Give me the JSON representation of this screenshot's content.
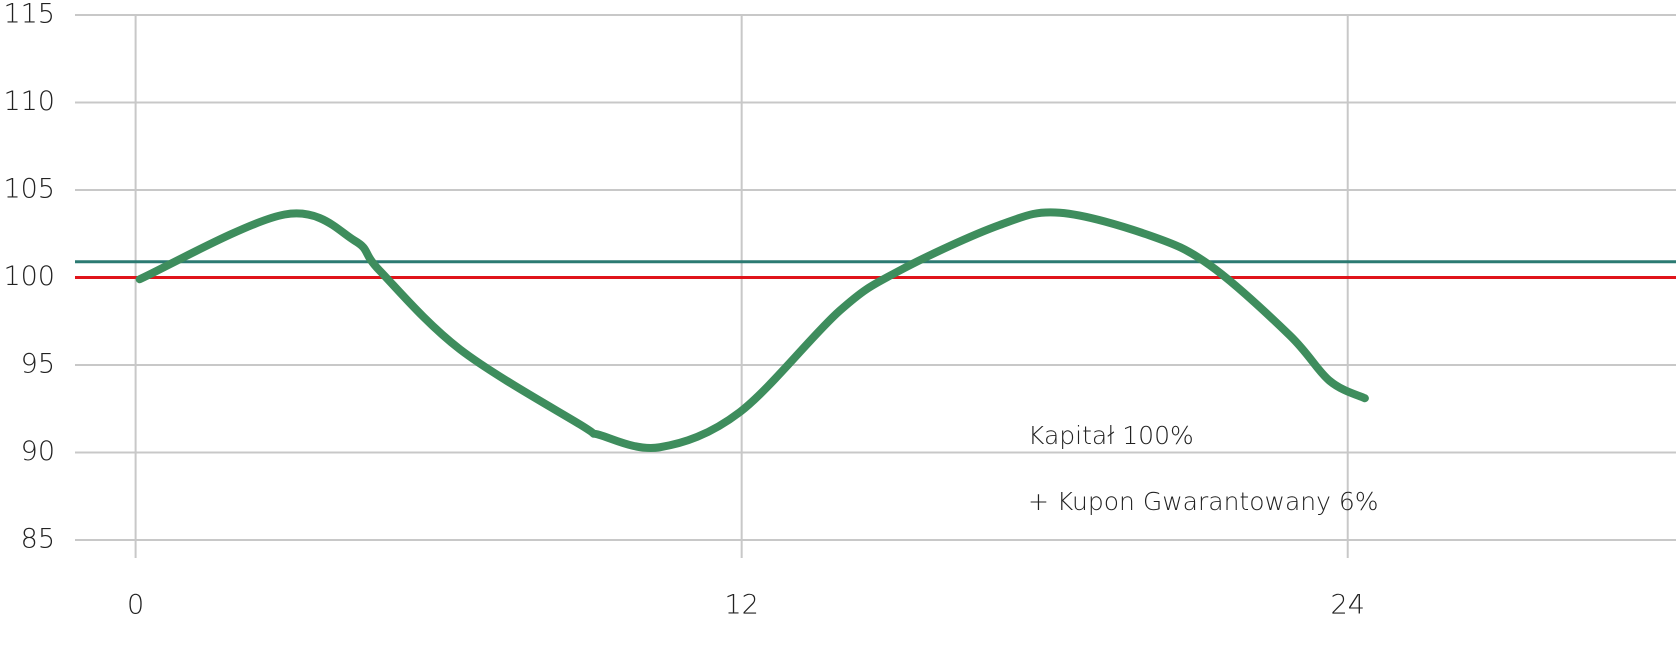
{
  "chart_data": {
    "type": "line",
    "x": [
      0.08,
      2.95,
      4.34,
      4.83,
      6.42,
      8.8,
      9.19,
      10.38,
      11.96,
      13.94,
      15.13,
      17.11,
      18.3,
      20.08,
      21.27,
      22.85,
      23.64,
      24.34
    ],
    "series": [
      {
        "color": "#3e8d5d",
        "values": [
          99.9,
          103.6,
          102.1,
          100.4,
          95.9,
          91.6,
          91.0,
          90.3,
          92.3,
          98.1,
          100.4,
          103.0,
          103.7,
          102.4,
          100.7,
          96.7,
          94.1,
          93.1
        ]
      }
    ],
    "reference_lines": [
      {
        "value": 100.9,
        "color": "#2b7a72"
      },
      {
        "value": 100,
        "color": "#e0141b"
      }
    ],
    "annotation": [
      "Kapitał 100%",
      "+ Kupon Gwarantowany 6%"
    ],
    "xlim": [
      -1.2,
      30.5
    ],
    "xticks": [
      0,
      12,
      24
    ],
    "ylim": [
      85,
      115
    ],
    "yticks": [
      85,
      90,
      95,
      100,
      105,
      110,
      115
    ],
    "grid": true
  }
}
